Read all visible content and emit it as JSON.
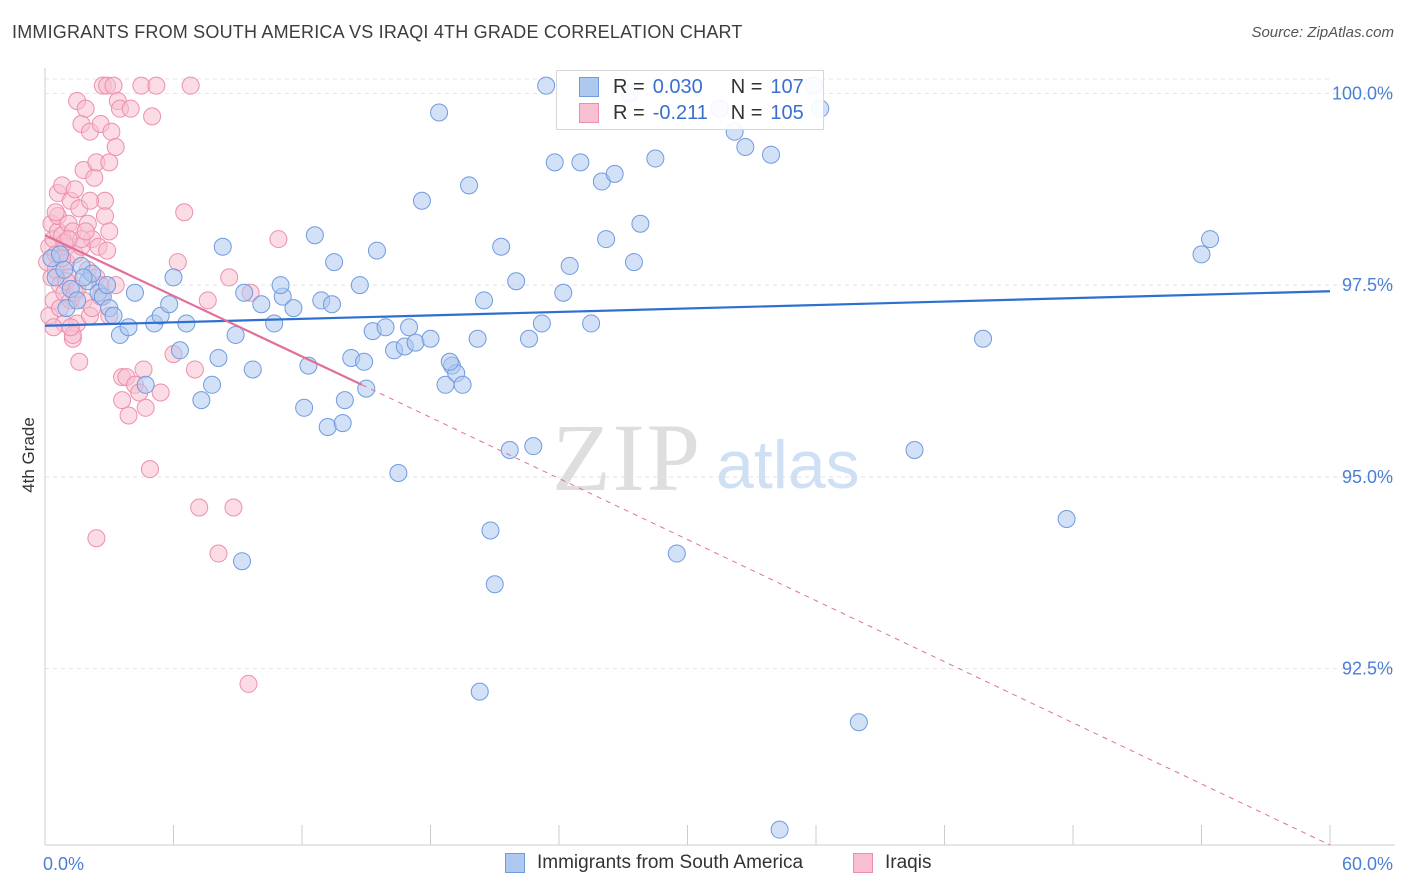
{
  "header": {
    "title": "IMMIGRANTS FROM SOUTH AMERICA VS IRAQI 4TH GRADE CORRELATION CHART",
    "source": "Source: ZipAtlas.com"
  },
  "watermark": {
    "zip": "ZIP",
    "atlas": "atlas"
  },
  "legend": {
    "rows": [
      {
        "r_label": "R = ",
        "r_value": "0.030",
        "n_label": "N = ",
        "n_value": "107"
      },
      {
        "r_label": "R = ",
        "r_value": "-0.211",
        "n_label": "N = ",
        "n_value": "105"
      }
    ]
  },
  "bottom_legend": {
    "items": [
      {
        "label": "Immigrants from South America"
      },
      {
        "label": "Iraqis"
      }
    ]
  },
  "colors": {
    "blue_fill": "#aec8f0",
    "blue_stroke": "#6f9be0",
    "blue_line": "#2f6fd0",
    "pink_fill": "#f8bfd0",
    "pink_stroke": "#ec8fae",
    "pink_line": "#e0709a",
    "axis_label": "#4a7fd6",
    "grid": "#e4e4e4"
  },
  "chart_data": {
    "type": "scatter",
    "title": "IMMIGRANTS FROM SOUTH AMERICA VS IRAQI 4TH GRADE CORRELATION CHART",
    "xlabel": "",
    "ylabel": "4th Grade",
    "xlim": [
      0,
      60
    ],
    "ylim": [
      90.2,
      100.2
    ],
    "x_tick_labels": [
      {
        "value": 0,
        "label": "0.0%"
      },
      {
        "value": 60,
        "label": "60.0%"
      }
    ],
    "y_tick_labels": [
      {
        "value": 100,
        "label": "100.0%"
      },
      {
        "value": 97.5,
        "label": "97.5%"
      },
      {
        "value": 95,
        "label": "95.0%"
      },
      {
        "value": 92.5,
        "label": "92.5%"
      }
    ],
    "grid": true,
    "legend_placement": "top-center",
    "series": [
      {
        "name": "Immigrants from South America",
        "r": 0.03,
        "n": 107,
        "trend": {
          "x": [
            0,
            60
          ],
          "y": [
            96.97,
            97.42
          ]
        },
        "points": [
          [
            0.3,
            97.85
          ],
          [
            0.5,
            97.6
          ],
          [
            0.7,
            97.9
          ],
          [
            0.9,
            97.7
          ],
          [
            1.0,
            97.2
          ],
          [
            1.2,
            97.45
          ],
          [
            1.5,
            97.3
          ],
          [
            1.7,
            97.75
          ],
          [
            2.0,
            97.55
          ],
          [
            2.2,
            97.65
          ],
          [
            2.5,
            97.4
          ],
          [
            2.7,
            97.35
          ],
          [
            3.0,
            97.2
          ],
          [
            3.2,
            97.1
          ],
          [
            3.5,
            96.85
          ],
          [
            3.9,
            96.95
          ],
          [
            4.7,
            96.2
          ],
          [
            5.1,
            97.0
          ],
          [
            5.4,
            97.1
          ],
          [
            5.8,
            97.25
          ],
          [
            6.3,
            96.65
          ],
          [
            6.6,
            97.0
          ],
          [
            7.3,
            96.0
          ],
          [
            7.8,
            96.2
          ],
          [
            8.1,
            96.55
          ],
          [
            8.3,
            98.0
          ],
          [
            8.9,
            96.85
          ],
          [
            9.3,
            97.4
          ],
          [
            9.7,
            96.4
          ],
          [
            10.1,
            97.25
          ],
          [
            10.7,
            97.0
          ],
          [
            11.1,
            97.35
          ],
          [
            11.6,
            97.2
          ],
          [
            12.1,
            95.9
          ],
          [
            12.3,
            96.45
          ],
          [
            12.6,
            98.15
          ],
          [
            12.9,
            97.3
          ],
          [
            13.4,
            97.25
          ],
          [
            13.2,
            95.65
          ],
          [
            13.9,
            95.7
          ],
          [
            14.0,
            96.0
          ],
          [
            14.3,
            96.55
          ],
          [
            14.7,
            97.5
          ],
          [
            14.9,
            96.5
          ],
          [
            15.0,
            96.15
          ],
          [
            15.3,
            96.9
          ],
          [
            15.5,
            97.95
          ],
          [
            15.9,
            96.95
          ],
          [
            16.3,
            96.65
          ],
          [
            16.8,
            96.7
          ],
          [
            17.0,
            96.95
          ],
          [
            17.3,
            96.75
          ],
          [
            17.6,
            98.6
          ],
          [
            18.0,
            96.8
          ],
          [
            18.4,
            99.75
          ],
          [
            18.7,
            96.2
          ],
          [
            19.0,
            96.45
          ],
          [
            19.2,
            96.35
          ],
          [
            19.5,
            96.2
          ],
          [
            19.8,
            98.8
          ],
          [
            20.2,
            96.8
          ],
          [
            20.5,
            97.3
          ],
          [
            20.8,
            94.3
          ],
          [
            21.0,
            93.6
          ],
          [
            21.3,
            98.0
          ],
          [
            21.7,
            95.35
          ],
          [
            22.0,
            97.55
          ],
          [
            22.6,
            96.8
          ],
          [
            22.8,
            95.4
          ],
          [
            23.2,
            97.0
          ],
          [
            23.4,
            100.1
          ],
          [
            23.8,
            99.1
          ],
          [
            24.2,
            97.4
          ],
          [
            24.5,
            97.75
          ],
          [
            25.0,
            99.1
          ],
          [
            25.5,
            97.0
          ],
          [
            26.0,
            98.85
          ],
          [
            26.2,
            98.1
          ],
          [
            26.6,
            98.95
          ],
          [
            27.3,
            100.0
          ],
          [
            27.5,
            97.8
          ],
          [
            27.8,
            98.3
          ],
          [
            28.5,
            99.15
          ],
          [
            29.5,
            94.0
          ],
          [
            31.5,
            99.8
          ],
          [
            32.2,
            99.5
          ],
          [
            32.7,
            99.3
          ],
          [
            33.9,
            99.2
          ],
          [
            34.3,
            90.4
          ],
          [
            35.9,
            100.1
          ],
          [
            36.2,
            99.8
          ],
          [
            38.0,
            91.8
          ],
          [
            40.6,
            95.35
          ],
          [
            43.8,
            96.8
          ],
          [
            47.7,
            94.45
          ],
          [
            54.0,
            97.9
          ],
          [
            54.4,
            98.1
          ],
          [
            1.8,
            97.6
          ],
          [
            6.0,
            97.6
          ],
          [
            9.2,
            93.9
          ],
          [
            20.3,
            92.2
          ],
          [
            16.5,
            95.05
          ],
          [
            4.2,
            97.4
          ],
          [
            2.9,
            97.5
          ],
          [
            11.0,
            97.5
          ],
          [
            13.5,
            97.8
          ],
          [
            18.9,
            96.5
          ]
        ]
      },
      {
        "name": "Iraqis",
        "r": -0.211,
        "n": 105,
        "trend": {
          "x": [
            0,
            14.8
          ],
          "y": [
            98.15,
            96.2
          ]
        },
        "trend_dashed": {
          "x": [
            14.8,
            60
          ],
          "y": [
            96.2,
            90.2
          ]
        },
        "points": [
          [
            0.1,
            97.8
          ],
          [
            0.2,
            98.0
          ],
          [
            0.2,
            97.1
          ],
          [
            0.3,
            98.3
          ],
          [
            0.3,
            97.6
          ],
          [
            0.4,
            98.1
          ],
          [
            0.4,
            97.3
          ],
          [
            0.5,
            97.9
          ],
          [
            0.5,
            97.7
          ],
          [
            0.6,
            98.2
          ],
          [
            0.6,
            98.7
          ],
          [
            0.6,
            98.4
          ],
          [
            0.7,
            97.2
          ],
          [
            0.7,
            97.5
          ],
          [
            0.8,
            98.15
          ],
          [
            0.8,
            98.8
          ],
          [
            0.9,
            97.4
          ],
          [
            0.9,
            97.0
          ],
          [
            1.0,
            98.0
          ],
          [
            1.0,
            97.8
          ],
          [
            1.1,
            98.3
          ],
          [
            1.1,
            97.6
          ],
          [
            1.2,
            98.6
          ],
          [
            1.2,
            97.3
          ],
          [
            1.3,
            98.2
          ],
          [
            1.3,
            96.8
          ],
          [
            1.4,
            97.4
          ],
          [
            1.4,
            97.9
          ],
          [
            1.5,
            99.9
          ],
          [
            1.5,
            97.0
          ],
          [
            1.6,
            98.5
          ],
          [
            1.7,
            99.6
          ],
          [
            1.7,
            98.0
          ],
          [
            1.8,
            99.0
          ],
          [
            1.8,
            97.3
          ],
          [
            1.9,
            99.8
          ],
          [
            2.0,
            98.3
          ],
          [
            2.0,
            97.7
          ],
          [
            2.1,
            99.5
          ],
          [
            2.1,
            97.1
          ],
          [
            2.2,
            98.1
          ],
          [
            2.3,
            98.9
          ],
          [
            2.4,
            97.6
          ],
          [
            2.4,
            99.1
          ],
          [
            2.5,
            98.0
          ],
          [
            2.6,
            99.6
          ],
          [
            2.6,
            97.5
          ],
          [
            2.7,
            100.1
          ],
          [
            2.8,
            98.4
          ],
          [
            2.9,
            100.1
          ],
          [
            3.0,
            98.2
          ],
          [
            3.0,
            99.1
          ],
          [
            3.1,
            99.5
          ],
          [
            3.2,
            100.1
          ],
          [
            3.3,
            99.3
          ],
          [
            3.4,
            99.9
          ],
          [
            3.5,
            99.8
          ],
          [
            3.6,
            96.3
          ],
          [
            3.6,
            96.0
          ],
          [
            3.8,
            96.3
          ],
          [
            3.9,
            95.8
          ],
          [
            4.0,
            99.8
          ],
          [
            4.2,
            96.2
          ],
          [
            4.4,
            96.1
          ],
          [
            4.5,
            100.1
          ],
          [
            4.6,
            96.4
          ],
          [
            4.7,
            95.9
          ],
          [
            4.9,
            95.1
          ],
          [
            5.0,
            99.7
          ],
          [
            5.2,
            100.1
          ],
          [
            5.4,
            96.1
          ],
          [
            6.0,
            96.6
          ],
          [
            6.2,
            97.8
          ],
          [
            6.5,
            98.45
          ],
          [
            6.8,
            100.1
          ],
          [
            7.0,
            96.4
          ],
          [
            7.2,
            94.6
          ],
          [
            7.6,
            97.3
          ],
          [
            8.1,
            94.0
          ],
          [
            8.6,
            97.6
          ],
          [
            8.8,
            94.6
          ],
          [
            9.5,
            92.3
          ],
          [
            9.6,
            97.4
          ],
          [
            10.9,
            98.1
          ],
          [
            1.0,
            97.55
          ],
          [
            1.3,
            96.85
          ],
          [
            1.6,
            96.5
          ],
          [
            2.4,
            94.2
          ],
          [
            3.0,
            97.1
          ],
          [
            2.2,
            97.2
          ],
          [
            0.9,
            98.05
          ],
          [
            1.2,
            96.95
          ],
          [
            1.7,
            98.1
          ],
          [
            2.8,
            98.6
          ],
          [
            3.3,
            97.5
          ],
          [
            1.9,
            98.2
          ],
          [
            2.6,
            97.35
          ],
          [
            0.5,
            98.45
          ],
          [
            1.1,
            98.1
          ],
          [
            0.4,
            96.95
          ],
          [
            1.4,
            98.75
          ],
          [
            2.1,
            98.6
          ],
          [
            0.8,
            97.85
          ],
          [
            1.5,
            97.45
          ],
          [
            2.9,
            97.95
          ]
        ]
      }
    ]
  }
}
